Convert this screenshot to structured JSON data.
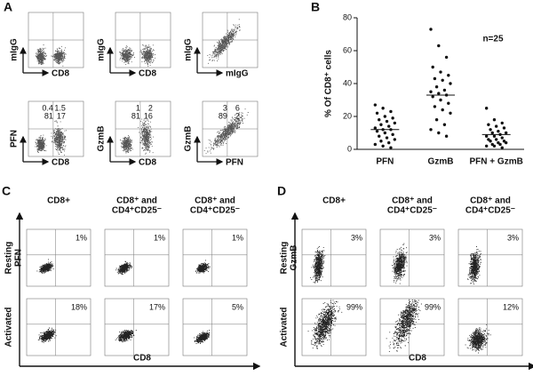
{
  "panel_a": {
    "label": "A",
    "plots": [
      {
        "y_label": "mIgG",
        "x_label": "CD8"
      },
      {
        "y_label": "mIgG",
        "x_label": "CD8"
      },
      {
        "y_label": "mIgG",
        "x_label": "mIgG"
      },
      {
        "y_label": "PFN",
        "x_label": "CD8",
        "quadrants": [
          "0.4",
          "1.5",
          "81",
          "17"
        ]
      },
      {
        "y_label": "GzmB",
        "x_label": "CD8",
        "quadrants": [
          "1",
          "2",
          "81",
          "16"
        ]
      },
      {
        "y_label": "GzmB",
        "x_label": "PFN",
        "quadrants": [
          "3",
          "6",
          "89",
          "2"
        ]
      }
    ]
  },
  "chart_data": {
    "type": "strip",
    "label": "B",
    "ylabel": "% Of CD8⁺ cells",
    "annotation": "n=25",
    "categories": [
      "PFN",
      "GzmB",
      "PFN + GzmB"
    ],
    "color": "#111111",
    "values": [
      [
        27,
        25,
        23,
        22,
        20,
        19,
        18,
        17,
        16,
        15,
        14,
        13,
        12,
        12,
        11,
        10,
        9,
        8,
        7,
        6,
        5,
        4,
        3,
        2,
        1
      ],
      [
        73,
        63,
        56,
        50,
        47,
        45,
        43,
        42,
        40,
        38,
        36,
        35,
        34,
        33,
        32,
        30,
        28,
        26,
        24,
        22,
        18,
        15,
        12,
        10,
        8
      ],
      [
        25,
        18,
        16,
        15,
        14,
        13,
        12,
        11,
        10,
        10,
        9,
        8,
        8,
        7,
        6,
        6,
        5,
        5,
        4,
        4,
        3,
        3,
        2,
        2,
        1
      ]
    ],
    "medians": [
      12,
      33,
      9
    ],
    "ylim": [
      0,
      80
    ],
    "yticks": [
      0,
      20,
      40,
      60,
      80
    ]
  },
  "panel_c": {
    "label": "C",
    "columns": [
      [
        "CD8+"
      ],
      [
        "CD8⁺ and",
        "CD4⁺CD25⁻"
      ],
      [
        "CD8⁺ and",
        "CD4⁺CD25⁻"
      ]
    ],
    "rows": [
      [
        "Resting",
        "PFN"
      ],
      [
        "Activated"
      ]
    ],
    "x_label": "CD8",
    "percentages": [
      [
        "1%",
        "1%",
        "1%"
      ],
      [
        "18%",
        "17%",
        "5%"
      ]
    ]
  },
  "panel_d": {
    "label": "D",
    "columns": [
      [
        "CD8+"
      ],
      [
        "CD8⁺ and",
        "CD4⁺CD25⁻"
      ],
      [
        "CD8⁺ and",
        "CD4⁺CD25⁻"
      ]
    ],
    "rows": [
      [
        "Resting",
        "GzmB"
      ],
      [
        "Activated"
      ]
    ],
    "x_label": "CD8",
    "percentages": [
      [
        "3%",
        "3%",
        "3%"
      ],
      [
        "99%",
        "99%",
        "12%"
      ]
    ]
  }
}
